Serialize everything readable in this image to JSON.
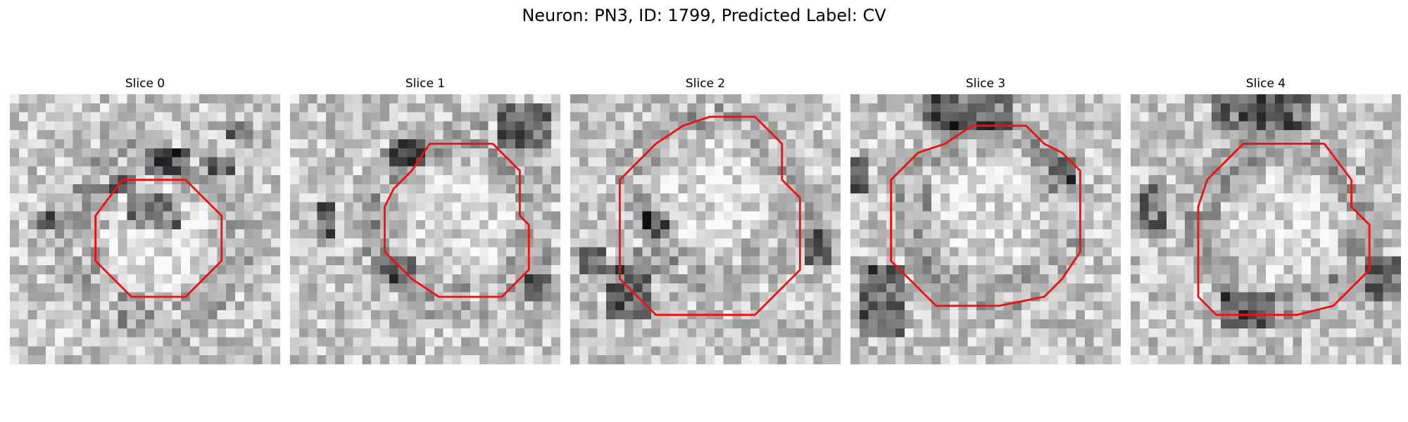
{
  "figure": {
    "title": "Neuron: PN3, ID: 1799, Predicted Label: CV"
  },
  "panels": [
    {
      "title": "Slice 0",
      "contour": [
        [
          12.5,
          9.5
        ],
        [
          19.5,
          9.5
        ],
        [
          23.5,
          13.5
        ],
        [
          23.5,
          18.5
        ],
        [
          19.5,
          22.5
        ],
        [
          13.5,
          22.5
        ],
        [
          9.5,
          18.5
        ],
        [
          9.5,
          13.5
        ]
      ],
      "dark_spots": [
        [
          15,
          6,
          5,
          3
        ],
        [
          22,
          7,
          3,
          2
        ],
        [
          11,
          9,
          3,
          2
        ],
        [
          3,
          13,
          2,
          2
        ],
        [
          13,
          11,
          6,
          4
        ],
        [
          24,
          3,
          3,
          2
        ]
      ]
    },
    {
      "title": "Slice 1",
      "contour": [
        [
          15.5,
          5.5
        ],
        [
          22.5,
          5.5
        ],
        [
          25.5,
          8.5
        ],
        [
          25.5,
          13.5
        ],
        [
          26.5,
          14.5
        ],
        [
          26.5,
          19.5
        ],
        [
          23.5,
          22.5
        ],
        [
          16.5,
          22.5
        ],
        [
          13.5,
          20.5
        ],
        [
          10.5,
          17.5
        ],
        [
          10.5,
          12.5
        ],
        [
          11.5,
          10.5
        ],
        [
          13.5,
          8.5
        ]
      ],
      "dark_spots": [
        [
          23,
          1,
          6,
          5
        ],
        [
          11,
          5,
          4,
          3
        ],
        [
          3,
          12,
          2,
          4
        ],
        [
          10,
          18,
          4,
          3
        ],
        [
          26,
          20,
          3,
          3
        ]
      ]
    },
    {
      "title": "Slice 2",
      "contour": [
        [
          15.5,
          2.5
        ],
        [
          20.5,
          2.5
        ],
        [
          23.5,
          5.5
        ],
        [
          23.5,
          9.5
        ],
        [
          25.5,
          11.5
        ],
        [
          25.5,
          19.5
        ],
        [
          20.5,
          24.5
        ],
        [
          9.5,
          24.5
        ],
        [
          5.5,
          20.5
        ],
        [
          5.5,
          9.5
        ],
        [
          7.5,
          7.5
        ],
        [
          9.5,
          5.5
        ],
        [
          12.5,
          3.5
        ]
      ],
      "dark_spots": [
        [
          4,
          19,
          5,
          6
        ],
        [
          1,
          17,
          3,
          3
        ],
        [
          26,
          15,
          3,
          4
        ],
        [
          8,
          13,
          3,
          3
        ]
      ]
    },
    {
      "title": "Slice 3",
      "contour": [
        [
          13.5,
          3.5
        ],
        [
          19.5,
          3.5
        ],
        [
          21.5,
          5.5
        ],
        [
          23.5,
          6.5
        ],
        [
          25.5,
          8.5
        ],
        [
          25.5,
          17.5
        ],
        [
          23.5,
          20.5
        ],
        [
          21.5,
          22.5
        ],
        [
          16.5,
          23.5
        ],
        [
          9.5,
          23.5
        ],
        [
          6.5,
          20.5
        ],
        [
          4.5,
          18.5
        ],
        [
          4.5,
          9.5
        ],
        [
          7.5,
          6.5
        ],
        [
          10.5,
          5.5
        ]
      ],
      "dark_spots": [
        [
          8,
          0,
          10,
          4
        ],
        [
          1,
          19,
          5,
          8
        ],
        [
          22,
          7,
          3,
          3
        ],
        [
          0,
          7,
          2,
          4
        ]
      ]
    },
    {
      "title": "Slice 4",
      "contour": [
        [
          12.5,
          5.5
        ],
        [
          21.5,
          5.5
        ],
        [
          24.5,
          9.5
        ],
        [
          24.5,
          12.5
        ],
        [
          26.5,
          14.5
        ],
        [
          26.5,
          19.5
        ],
        [
          22.5,
          23.5
        ],
        [
          18.5,
          24.5
        ],
        [
          9.5,
          24.5
        ],
        [
          7.5,
          22.5
        ],
        [
          7.5,
          12.5
        ],
        [
          8.5,
          9.5
        ],
        [
          9.5,
          8.5
        ]
      ],
      "dark_spots": [
        [
          9,
          0,
          11,
          4
        ],
        [
          1,
          10,
          3,
          6
        ],
        [
          26,
          18,
          4,
          5
        ],
        [
          10,
          22,
          6,
          4
        ]
      ]
    }
  ]
}
